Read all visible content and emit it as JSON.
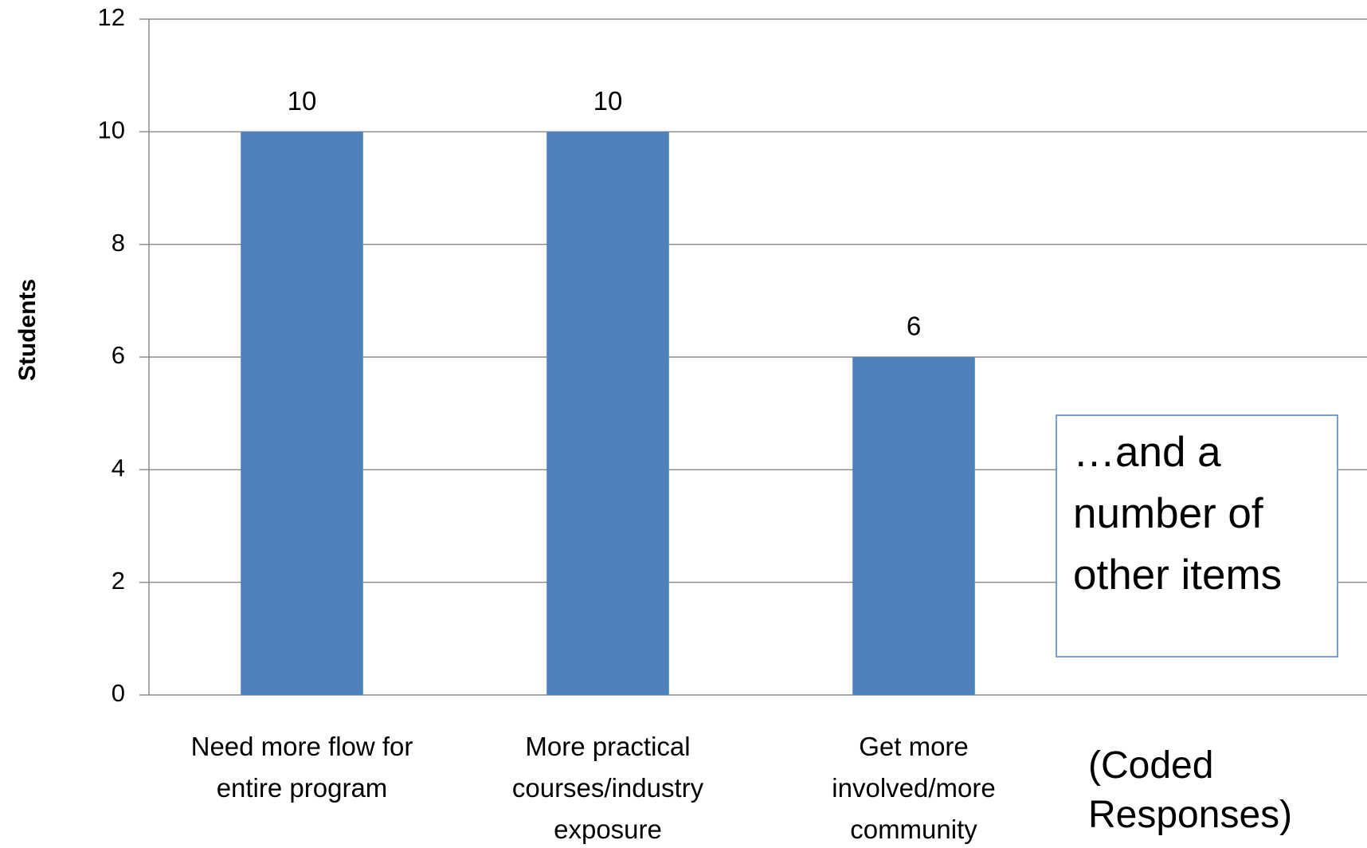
{
  "chart_data": {
    "type": "bar",
    "y_label": "Students",
    "categories": [
      "Need more flow for entire program",
      "More practical courses/industry exposure",
      "Get more involved/more community",
      null
    ],
    "values": [
      10,
      10,
      6,
      null
    ],
    "color": "#4f81bd",
    "ylim": [
      0,
      12
    ],
    "yticks": [
      0,
      2,
      4,
      6,
      8,
      10,
      12
    ],
    "grid": true,
    "annotations": [
      "…and a number of other items",
      "(Coded Responses)"
    ]
  }
}
